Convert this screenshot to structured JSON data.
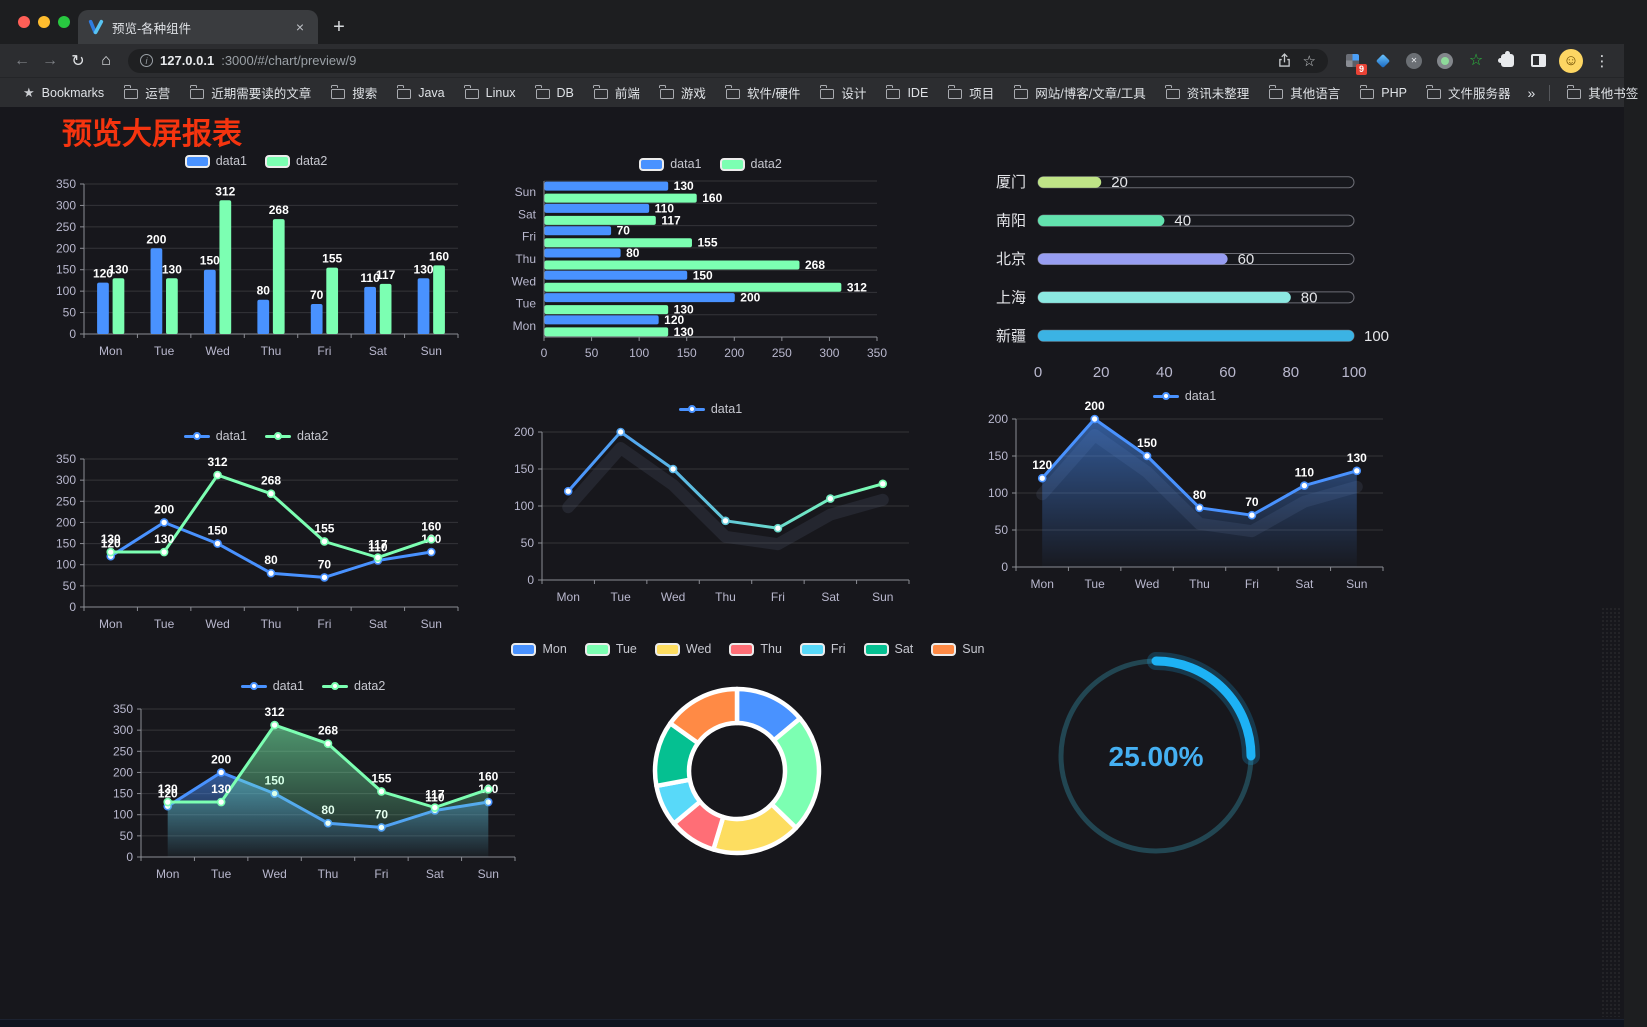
{
  "browser": {
    "tab": {
      "title": "预览-各种组件"
    },
    "url": {
      "host": "127.0.0.1",
      "path": ":3000/#/chart/preview/9"
    },
    "bookmarks_label": "Bookmarks",
    "bookmarks": [
      "运营",
      "近期需要读的文章",
      "搜索",
      "Java",
      "Linux",
      "DB",
      "前端",
      "游戏",
      "软件/硬件",
      "设计",
      "IDE",
      "项目",
      "网站/博客/文章/工具",
      "资讯未整理",
      "其他语言",
      "PHP",
      "文件服务器"
    ],
    "other_bookmarks": "其他书签",
    "extension_badge": "9"
  },
  "icons": {
    "back": "←",
    "forward": "→",
    "reload": "↻",
    "home": "⌂",
    "new_tab": "+",
    "close_tab": "×",
    "menu": "⋮",
    "star_outline": "☆",
    "bookmarks_star": "★",
    "avatar_face": "☺",
    "info": "i",
    "overflow": "»",
    "extension_star": "☆"
  },
  "page": {
    "title": "预览大屏报表",
    "title_color": "#f5340f",
    "background": "#17171c"
  },
  "chart_data": [
    {
      "name": "grouped-bar",
      "type": "bar",
      "orientation": "vertical",
      "categories": [
        "Mon",
        "Tue",
        "Wed",
        "Thu",
        "Fri",
        "Sat",
        "Sun"
      ],
      "series": [
        {
          "name": "data1",
          "color": "#4992ff",
          "values": [
            120,
            200,
            150,
            80,
            70,
            110,
            130
          ]
        },
        {
          "name": "data2",
          "color": "#7cffb2",
          "values": [
            130,
            130,
            312,
            268,
            155,
            117,
            160
          ]
        }
      ],
      "ylim": [
        0,
        350
      ],
      "ytick": 50,
      "legend": true,
      "value_labels": true,
      "grid": true
    },
    {
      "name": "grouped-bar-horizontal",
      "type": "bar",
      "orientation": "horizontal",
      "categories": [
        "Mon",
        "Tue",
        "Wed",
        "Thu",
        "Fri",
        "Sat",
        "Sun"
      ],
      "series": [
        {
          "name": "data1",
          "color": "#4992ff",
          "values": [
            120,
            200,
            150,
            80,
            70,
            110,
            130
          ]
        },
        {
          "name": "data2",
          "color": "#7cffb2",
          "values": [
            130,
            130,
            312,
            268,
            155,
            117,
            160
          ]
        }
      ],
      "xlim": [
        0,
        350
      ],
      "xtick": 50,
      "legend": true,
      "value_labels": true,
      "grid": true
    },
    {
      "name": "progress-bars",
      "type": "progress",
      "categories": [
        "厦门",
        "南阳",
        "北京",
        "上海",
        "新疆"
      ],
      "values": [
        20,
        40,
        60,
        80,
        100
      ],
      "colors": [
        "#bfe487",
        "#62e2ae",
        "#979df1",
        "#8ce9e2",
        "#3bb3e4"
      ],
      "xlim": [
        0,
        100
      ],
      "xticks": [
        0,
        20,
        40,
        60,
        80,
        100
      ]
    },
    {
      "name": "multi-line",
      "type": "line",
      "categories": [
        "Mon",
        "Tue",
        "Wed",
        "Thu",
        "Fri",
        "Sat",
        "Sun"
      ],
      "series": [
        {
          "name": "data1",
          "color": "#4992ff",
          "values": [
            120,
            200,
            150,
            80,
            70,
            110,
            130
          ]
        },
        {
          "name": "data2",
          "color": "#7cffb2",
          "values": [
            130,
            130,
            312,
            268,
            155,
            117,
            160
          ]
        }
      ],
      "ylim": [
        0,
        350
      ],
      "ytick": 50,
      "legend": true,
      "value_labels": true,
      "grid": true
    },
    {
      "name": "gradient-line",
      "type": "line",
      "categories": [
        "Mon",
        "Tue",
        "Wed",
        "Thu",
        "Fri",
        "Sat",
        "Sun"
      ],
      "series": [
        {
          "name": "data1",
          "color": "#4992ff",
          "gradient": [
            "#4992ff",
            "#7cffb2"
          ],
          "values": [
            120,
            200,
            150,
            80,
            70,
            110,
            130
          ]
        }
      ],
      "ylim": [
        0,
        200
      ],
      "ytick": 50,
      "legend": true,
      "value_labels": false,
      "shadow": true,
      "grid": true
    },
    {
      "name": "area-line",
      "type": "area",
      "categories": [
        "Mon",
        "Tue",
        "Wed",
        "Thu",
        "Fri",
        "Sat",
        "Sun"
      ],
      "series": [
        {
          "name": "data1",
          "color": "#4992ff",
          "values": [
            120,
            200,
            150,
            80,
            70,
            110,
            130
          ]
        }
      ],
      "ylim": [
        0,
        200
      ],
      "ytick": 50,
      "legend": true,
      "value_labels": true,
      "shadow": true,
      "grid": true
    },
    {
      "name": "double-area-line",
      "type": "area",
      "categories": [
        "Mon",
        "Tue",
        "Wed",
        "Thu",
        "Fri",
        "Sat",
        "Sun"
      ],
      "series": [
        {
          "name": "data1",
          "color": "#4992ff",
          "values": [
            120,
            200,
            150,
            80,
            70,
            110,
            130
          ]
        },
        {
          "name": "data2",
          "color": "#7cffb2",
          "values": [
            130,
            130,
            312,
            268,
            155,
            117,
            160
          ]
        }
      ],
      "ylim": [
        0,
        350
      ],
      "ytick": 50,
      "legend": true,
      "value_labels": true,
      "grid": true
    },
    {
      "name": "donut-pie",
      "type": "pie",
      "categories": [
        "Mon",
        "Tue",
        "Wed",
        "Thu",
        "Fri",
        "Sat",
        "Sun"
      ],
      "values": [
        120,
        200,
        150,
        80,
        70,
        110,
        130
      ],
      "colors": [
        "#4992ff",
        "#7cffb2",
        "#fddd60",
        "#ff6e76",
        "#58d9f9",
        "#05c091",
        "#ff8a45"
      ],
      "legend": true,
      "inner_radius": 48,
      "outer_radius": 82
    },
    {
      "name": "gauge",
      "type": "gauge",
      "label": "25.00%",
      "percent": 25,
      "color": "#1db2f5",
      "track_color": "#224652",
      "text_color": "#45b0f2"
    }
  ]
}
